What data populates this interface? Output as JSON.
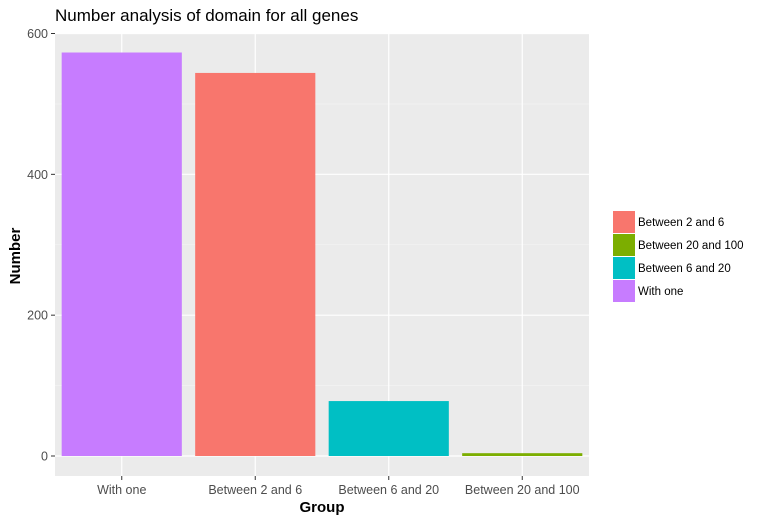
{
  "chart_data": {
    "type": "bar",
    "title": "Number analysis of domain for all genes",
    "xlabel": "Group",
    "ylabel": "Number",
    "categories": [
      "With one",
      "Between 2 and 6",
      "Between 6 and 20",
      "Between 20 and 100"
    ],
    "values": [
      573,
      544,
      78,
      4
    ],
    "bar_colors": [
      "#C77CFF",
      "#F8766D",
      "#00BFC4",
      "#7CAE00"
    ],
    "ylim": [
      -35,
      600
    ],
    "yticks": [
      0,
      200,
      400,
      600
    ],
    "grid": true,
    "panel_background": "#EBEBEB",
    "legend_position": "right",
    "legend": [
      {
        "label": "Between 2 and 6",
        "color": "#F8766D"
      },
      {
        "label": "Between 20 and 100",
        "color": "#7CAE00"
      },
      {
        "label": "Between 6 and 20",
        "color": "#00BFC4"
      },
      {
        "label": "With one",
        "color": "#C77CFF"
      }
    ]
  }
}
